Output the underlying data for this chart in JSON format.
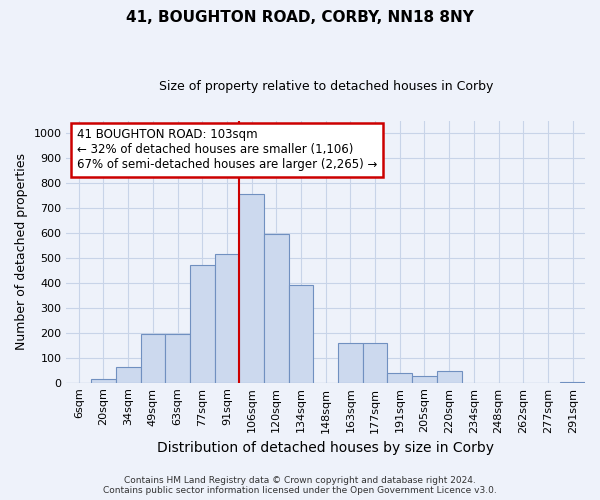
{
  "title_main": "41, BOUGHTON ROAD, CORBY, NN18 8NY",
  "title_sub": "Size of property relative to detached houses in Corby",
  "xlabel": "Distribution of detached houses by size in Corby",
  "ylabel": "Number of detached properties",
  "categories": [
    "6sqm",
    "20sqm",
    "34sqm",
    "49sqm",
    "63sqm",
    "77sqm",
    "91sqm",
    "106sqm",
    "120sqm",
    "134sqm",
    "148sqm",
    "163sqm",
    "177sqm",
    "191sqm",
    "205sqm",
    "220sqm",
    "234sqm",
    "248sqm",
    "262sqm",
    "277sqm",
    "291sqm"
  ],
  "values": [
    0,
    13,
    63,
    195,
    193,
    472,
    517,
    755,
    597,
    390,
    0,
    158,
    158,
    40,
    25,
    45,
    0,
    0,
    0,
    0,
    3
  ],
  "bar_color": "#ccd9ee",
  "bar_edge_color": "#7090c0",
  "annotation_text_line1": "41 BOUGHTON ROAD: 103sqm",
  "annotation_text_line2": "← 32% of detached houses are smaller (1,106)",
  "annotation_text_line3": "67% of semi-detached houses are larger (2,265) →",
  "annotation_box_facecolor": "#ffffff",
  "annotation_box_edgecolor": "#cc0000",
  "red_line_color": "#cc0000",
  "footer_line1": "Contains HM Land Registry data © Crown copyright and database right 2024.",
  "footer_line2": "Contains public sector information licensed under the Open Government Licence v3.0.",
  "ylim": [
    0,
    1050
  ],
  "yticks": [
    0,
    100,
    200,
    300,
    400,
    500,
    600,
    700,
    800,
    900,
    1000
  ],
  "grid_color": "#c8d4e8",
  "bg_color": "#eef2fa",
  "title_fontsize": 11,
  "subtitle_fontsize": 9,
  "axis_label_fontsize": 9,
  "tick_fontsize": 8,
  "annotation_fontsize": 8.5,
  "footer_fontsize": 6.5
}
